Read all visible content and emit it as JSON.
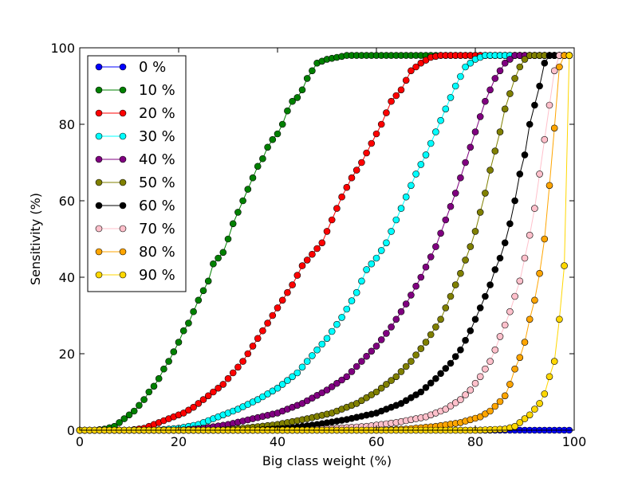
{
  "chart_data": {
    "type": "line",
    "xlabel": "Big class weight (%)",
    "ylabel": "Sensitivity (%)",
    "xlim": [
      0,
      100
    ],
    "ylim": [
      0,
      100
    ],
    "xticks": [
      0,
      20,
      40,
      60,
      80,
      100
    ],
    "yticks": [
      0,
      20,
      40,
      60,
      80,
      100
    ],
    "tick_labels": {
      "x": [
        "0",
        "20",
        "40",
        "60",
        "80",
        "100"
      ],
      "y": [
        "0",
        "20",
        "40",
        "60",
        "80",
        "100"
      ]
    },
    "grid": false,
    "legend_position": "top-left",
    "marker": "circle",
    "x": [
      0,
      1,
      2,
      3,
      4,
      5,
      6,
      7,
      8,
      9,
      10,
      11,
      12,
      13,
      14,
      15,
      16,
      17,
      18,
      19,
      20,
      21,
      22,
      23,
      24,
      25,
      26,
      27,
      28,
      29,
      30,
      31,
      32,
      33,
      34,
      35,
      36,
      37,
      38,
      39,
      40,
      41,
      42,
      43,
      44,
      45,
      46,
      47,
      48,
      49,
      50,
      51,
      52,
      53,
      54,
      55,
      56,
      57,
      58,
      59,
      60,
      61,
      62,
      63,
      64,
      65,
      66,
      67,
      68,
      69,
      70,
      71,
      72,
      73,
      74,
      75,
      76,
      77,
      78,
      79,
      80,
      81,
      82,
      83,
      84,
      85,
      86,
      87,
      88,
      89,
      90,
      91,
      92,
      93,
      94,
      95,
      96,
      97,
      98,
      99
    ],
    "series": [
      {
        "name": "0 %",
        "color": "#0000ff",
        "knots": [
          [
            0,
            0
          ],
          [
            40,
            0
          ],
          [
            99,
            0
          ]
        ]
      },
      {
        "name": "10 %",
        "color": "#008000",
        "knots": [
          [
            0,
            0
          ],
          [
            3,
            0
          ],
          [
            5,
            0.3
          ],
          [
            7,
            1
          ],
          [
            8,
            2
          ],
          [
            9,
            3
          ],
          [
            10,
            4
          ],
          [
            11,
            5
          ],
          [
            12,
            6.5
          ],
          [
            13,
            8
          ],
          [
            14,
            10
          ],
          [
            15,
            11.5
          ],
          [
            16,
            13.5
          ],
          [
            17,
            16
          ],
          [
            18,
            18
          ],
          [
            19,
            20.5
          ],
          [
            20,
            23
          ],
          [
            21,
            26
          ],
          [
            22,
            28
          ],
          [
            23,
            31
          ],
          [
            24,
            34
          ],
          [
            25,
            36.5
          ],
          [
            26,
            39
          ],
          [
            27,
            43.5
          ],
          [
            28,
            45
          ],
          [
            29,
            46.5
          ],
          [
            30,
            50
          ],
          [
            31,
            54
          ],
          [
            32,
            57
          ],
          [
            33,
            60
          ],
          [
            34,
            63
          ],
          [
            35,
            66
          ],
          [
            36,
            69
          ],
          [
            37,
            71
          ],
          [
            38,
            74
          ],
          [
            39,
            76
          ],
          [
            40,
            77.5
          ],
          [
            41,
            80
          ],
          [
            42,
            83.5
          ],
          [
            43,
            86
          ],
          [
            44,
            87
          ],
          [
            45,
            89
          ],
          [
            46,
            92
          ],
          [
            47,
            94
          ],
          [
            48,
            96
          ],
          [
            49,
            96.5
          ],
          [
            50,
            97
          ],
          [
            52,
            97.5
          ],
          [
            54,
            98
          ],
          [
            99,
            98
          ]
        ]
      },
      {
        "name": "20 %",
        "color": "#ff0000",
        "knots": [
          [
            0,
            0
          ],
          [
            10,
            0
          ],
          [
            13,
            0.5
          ],
          [
            15,
            1.5
          ],
          [
            17,
            2.5
          ],
          [
            19,
            3.5
          ],
          [
            21,
            4.5
          ],
          [
            23,
            6
          ],
          [
            25,
            8
          ],
          [
            27,
            10
          ],
          [
            29,
            12
          ],
          [
            31,
            15
          ],
          [
            33,
            18
          ],
          [
            35,
            22
          ],
          [
            37,
            26
          ],
          [
            39,
            30
          ],
          [
            41,
            34
          ],
          [
            43,
            38
          ],
          [
            45,
            43
          ],
          [
            47,
            46
          ],
          [
            49,
            49
          ],
          [
            51,
            55
          ],
          [
            53,
            61
          ],
          [
            55,
            66
          ],
          [
            57,
            70
          ],
          [
            59,
            75
          ],
          [
            61,
            80
          ],
          [
            63,
            86
          ],
          [
            65,
            89
          ],
          [
            67,
            94
          ],
          [
            69,
            96
          ],
          [
            71,
            97.5
          ],
          [
            73,
            98
          ],
          [
            99,
            98
          ]
        ]
      },
      {
        "name": "30 %",
        "color": "#00ffff",
        "knots": [
          [
            0,
            0
          ],
          [
            15,
            0
          ],
          [
            20,
            0.5
          ],
          [
            24,
            1.5
          ],
          [
            28,
            3.5
          ],
          [
            32,
            5.5
          ],
          [
            36,
            8
          ],
          [
            40,
            11
          ],
          [
            44,
            15
          ],
          [
            47,
            19.5
          ],
          [
            50,
            24
          ],
          [
            53,
            29.5
          ],
          [
            56,
            36
          ],
          [
            58,
            42
          ],
          [
            60,
            45
          ],
          [
            62,
            49
          ],
          [
            64,
            55
          ],
          [
            66,
            61
          ],
          [
            68,
            67
          ],
          [
            70,
            72
          ],
          [
            72,
            78
          ],
          [
            74,
            84
          ],
          [
            76,
            90
          ],
          [
            78,
            95
          ],
          [
            80,
            97
          ],
          [
            82,
            98
          ],
          [
            99,
            98
          ]
        ]
      },
      {
        "name": "40 %",
        "color": "#800080",
        "knots": [
          [
            0,
            0
          ],
          [
            20,
            0
          ],
          [
            25,
            0.5
          ],
          [
            30,
            1.5
          ],
          [
            35,
            3
          ],
          [
            40,
            4.5
          ],
          [
            45,
            7
          ],
          [
            50,
            10.5
          ],
          [
            54,
            14
          ],
          [
            57,
            18
          ],
          [
            60,
            22
          ],
          [
            63,
            27
          ],
          [
            66,
            33
          ],
          [
            69,
            40
          ],
          [
            72,
            48
          ],
          [
            74,
            55
          ],
          [
            76,
            62
          ],
          [
            78,
            70
          ],
          [
            80,
            78
          ],
          [
            82,
            86
          ],
          [
            84,
            92
          ],
          [
            86,
            96
          ],
          [
            88,
            98
          ],
          [
            99,
            98
          ]
        ]
      },
      {
        "name": "50 %",
        "color": "#808000",
        "knots": [
          [
            0,
            0
          ],
          [
            28,
            0
          ],
          [
            33,
            0.5
          ],
          [
            40,
            1.5
          ],
          [
            46,
            3
          ],
          [
            51,
            4.5
          ],
          [
            56,
            7
          ],
          [
            60,
            10
          ],
          [
            64,
            14
          ],
          [
            67,
            18
          ],
          [
            70,
            23
          ],
          [
            73,
            29
          ],
          [
            75,
            35
          ],
          [
            77,
            41
          ],
          [
            79,
            48
          ],
          [
            80,
            52
          ],
          [
            81,
            57
          ],
          [
            82,
            62
          ],
          [
            83,
            68
          ],
          [
            84,
            73
          ],
          [
            85,
            78
          ],
          [
            86,
            84
          ],
          [
            87,
            88
          ],
          [
            88,
            92
          ],
          [
            89,
            95
          ],
          [
            90,
            97
          ],
          [
            91,
            98
          ],
          [
            99,
            98
          ]
        ]
      },
      {
        "name": "60 %",
        "color": "#000000",
        "knots": [
          [
            0,
            0
          ],
          [
            35,
            0
          ],
          [
            42,
            0.5
          ],
          [
            48,
            1.5
          ],
          [
            54,
            2.8
          ],
          [
            60,
            4.5
          ],
          [
            65,
            7
          ],
          [
            69,
            10
          ],
          [
            72,
            13.5
          ],
          [
            75,
            17.5
          ],
          [
            77,
            21
          ],
          [
            79,
            26
          ],
          [
            81,
            32
          ],
          [
            83,
            38
          ],
          [
            84,
            42
          ],
          [
            85,
            45
          ],
          [
            86,
            49
          ],
          [
            87,
            54
          ],
          [
            88,
            60
          ],
          [
            89,
            67
          ],
          [
            90,
            72
          ],
          [
            91,
            80
          ],
          [
            92,
            85
          ],
          [
            93,
            90
          ],
          [
            94,
            96
          ],
          [
            95,
            98
          ],
          [
            99,
            98
          ]
        ]
      },
      {
        "name": "70 %",
        "color": "#ffc0cb",
        "knots": [
          [
            0,
            0
          ],
          [
            45,
            0
          ],
          [
            52,
            0.5
          ],
          [
            58,
            1
          ],
          [
            64,
            2
          ],
          [
            70,
            3.5
          ],
          [
            74,
            5.5
          ],
          [
            77,
            8
          ],
          [
            79,
            10.5
          ],
          [
            81,
            14
          ],
          [
            83,
            18
          ],
          [
            84,
            21
          ],
          [
            85,
            24.5
          ],
          [
            86,
            27.5
          ],
          [
            87,
            31
          ],
          [
            88,
            35
          ],
          [
            89,
            39
          ],
          [
            90,
            45
          ],
          [
            91,
            51
          ],
          [
            92,
            58
          ],
          [
            93,
            67
          ],
          [
            94,
            76
          ],
          [
            95,
            85
          ],
          [
            96,
            94
          ],
          [
            97,
            98
          ],
          [
            99,
            98
          ]
        ]
      },
      {
        "name": "80 %",
        "color": "#ffa500",
        "knots": [
          [
            0,
            0
          ],
          [
            60,
            0
          ],
          [
            66,
            0.3
          ],
          [
            72,
            1
          ],
          [
            77,
            2
          ],
          [
            81,
            3.5
          ],
          [
            83,
            5
          ],
          [
            85,
            7.5
          ],
          [
            86,
            9
          ],
          [
            87,
            12
          ],
          [
            88,
            16
          ],
          [
            89,
            19
          ],
          [
            90,
            23
          ],
          [
            91,
            29
          ],
          [
            92,
            34
          ],
          [
            93,
            41
          ],
          [
            94,
            50
          ],
          [
            95,
            64
          ],
          [
            96,
            79
          ],
          [
            97,
            95
          ],
          [
            98,
            98
          ],
          [
            99,
            98
          ]
        ]
      },
      {
        "name": "90 %",
        "color": "#ffd700",
        "knots": [
          [
            0,
            0
          ],
          [
            80,
            0
          ],
          [
            86,
            0.3
          ],
          [
            88,
            1
          ],
          [
            89,
            2
          ],
          [
            90,
            3
          ],
          [
            91,
            4
          ],
          [
            92,
            5.5
          ],
          [
            93,
            7
          ],
          [
            94,
            9.5
          ],
          [
            95,
            14
          ],
          [
            96,
            18
          ],
          [
            97,
            29
          ],
          [
            98,
            43
          ],
          [
            99,
            98
          ]
        ]
      }
    ]
  }
}
